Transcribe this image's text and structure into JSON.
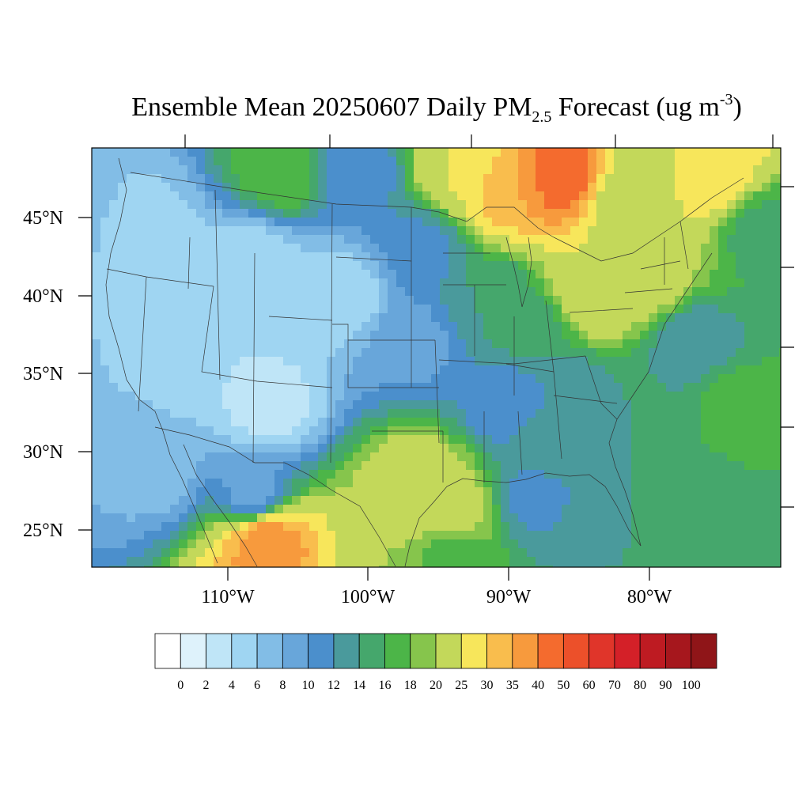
{
  "title": {
    "pre": "Ensemble Mean 20250607 Daily PM",
    "sub": "2.5",
    "mid": " Forecast (ug m",
    "sup": "-3",
    "post": ")"
  },
  "map": {
    "lat_labels": [
      "45°N",
      "40°N",
      "35°N",
      "30°N",
      "25°N"
    ],
    "lon_labels": [
      "110°W",
      "100°W",
      "90°W",
      "80°W"
    ]
  },
  "colorbar": {
    "labels": [
      "0",
      "2",
      "4",
      "6",
      "8",
      "10",
      "12",
      "14",
      "16",
      "18",
      "20",
      "25",
      "30",
      "35",
      "40",
      "50",
      "60",
      "70",
      "80",
      "90",
      "100"
    ],
    "colors": [
      "#ffffff",
      "#def2fb",
      "#bfe5f7",
      "#9fd5f2",
      "#82bde6",
      "#68a6da",
      "#4b8fcc",
      "#4a9a9c",
      "#45a76c",
      "#4cb548",
      "#86c54c",
      "#c3d85a",
      "#f7e65b",
      "#f9bd4d",
      "#f79a3d",
      "#f46b2e",
      "#ec502a",
      "#e0352a",
      "#d42028",
      "#be1b22",
      "#a6171d",
      "#8f1518"
    ]
  },
  "field_blobs": [
    {
      "lon": -116,
      "lat": 44,
      "value": 5
    },
    {
      "lon": -108,
      "lat": 42,
      "value": 4
    },
    {
      "lon": -102,
      "lat": 40,
      "value": 4
    },
    {
      "lon": -112,
      "lat": 36,
      "value": 4
    },
    {
      "lon": -120,
      "lat": 38,
      "value": 6
    },
    {
      "lon": -122,
      "lat": 46,
      "value": 8
    },
    {
      "lon": -107,
      "lat": 33,
      "value": 3
    },
    {
      "lon": -115,
      "lat": 29,
      "value": 7
    },
    {
      "lon": -108,
      "lat": 27,
      "value": 8
    },
    {
      "lon": -107.2,
      "lat": 24.5,
      "value": 40
    },
    {
      "lon": -106,
      "lat": 48,
      "value": 18
    },
    {
      "lon": -101,
      "lat": 48,
      "value": 10
    },
    {
      "lon": -96,
      "lat": 43,
      "value": 11
    },
    {
      "lon": -97,
      "lat": 37,
      "value": 9
    },
    {
      "lon": -96,
      "lat": 27.5,
      "value": 25
    },
    {
      "lon": -94,
      "lat": 26,
      "value": 22
    },
    {
      "lon": -98,
      "lat": 25,
      "value": 20
    },
    {
      "lon": -91,
      "lat": 40,
      "value": 14
    },
    {
      "lon": -88,
      "lat": 38,
      "value": 15
    },
    {
      "lon": -86,
      "lat": 34,
      "value": 12
    },
    {
      "lon": -90,
      "lat": 33,
      "value": 10
    },
    {
      "lon": -87,
      "lat": 31,
      "value": 14
    },
    {
      "lon": -90,
      "lat": 47,
      "value": 35
    },
    {
      "lon": -86,
      "lat": 47.5,
      "value": 45
    },
    {
      "lon": -93,
      "lat": 48,
      "value": 25
    },
    {
      "lon": -82,
      "lat": 46,
      "value": 20
    },
    {
      "lon": -84,
      "lat": 40,
      "value": 25
    },
    {
      "lon": -80,
      "lat": 41,
      "value": 22
    },
    {
      "lon": -80,
      "lat": 48,
      "value": 22
    },
    {
      "lon": -76,
      "lat": 48,
      "value": 30
    },
    {
      "lon": -72,
      "lat": 44,
      "value": 15
    },
    {
      "lon": -77,
      "lat": 37,
      "value": 12
    },
    {
      "lon": -80,
      "lat": 33,
      "value": 14
    },
    {
      "lon": -74,
      "lat": 33,
      "value": 17
    },
    {
      "lon": -72,
      "lat": 28,
      "value": 16
    },
    {
      "lon": -78,
      "lat": 26,
      "value": 14
    },
    {
      "lon": -84,
      "lat": 25,
      "value": 14
    },
    {
      "lon": -88,
      "lat": 27,
      "value": 11
    },
    {
      "lon": -94,
      "lat": 23.5,
      "value": 16
    }
  ]
}
